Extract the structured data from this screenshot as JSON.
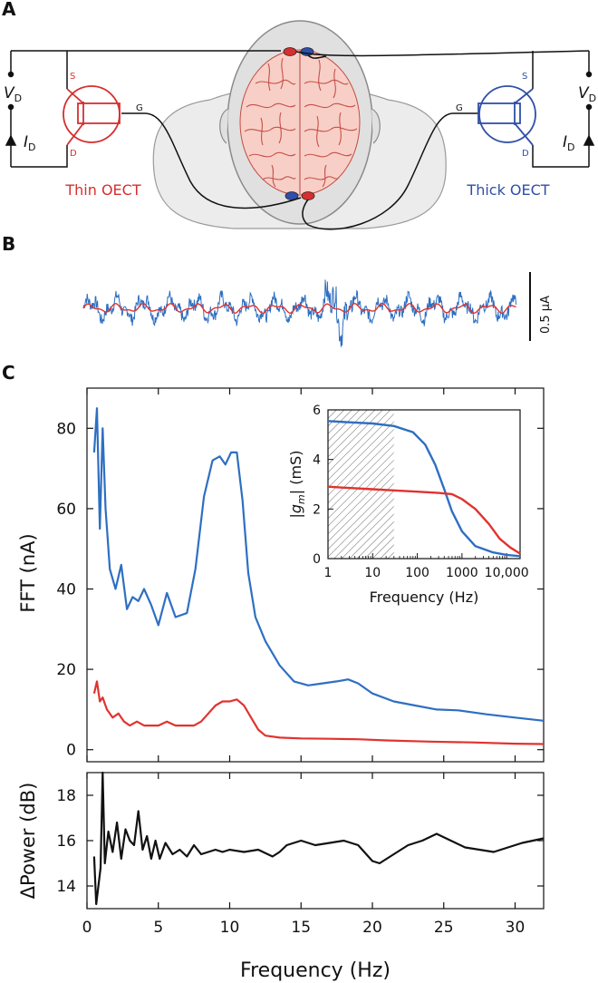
{
  "panels": {
    "a": "A",
    "b": "B",
    "c": "C"
  },
  "circuit": {
    "left": {
      "name": "Thin OECT",
      "color": "#d62f2f",
      "terminals": {
        "s": "S",
        "d": "D",
        "g": "G"
      }
    },
    "right": {
      "name": "Thick OECT",
      "color": "#2f4fa8",
      "terminals": {
        "s": "S",
        "d": "D",
        "g": "G"
      }
    },
    "vd": {
      "main": "V",
      "sub": "D"
    },
    "id": {
      "main": "I",
      "sub": "D"
    }
  },
  "trace": {
    "scale_label": "0.5 μA",
    "colors": {
      "thick": "#2e6fc2",
      "thin": "#e0332f"
    }
  },
  "chart_data": [
    {
      "type": "line",
      "name": "FFT",
      "ylabel": "FFT (nA)",
      "xlim": [
        0,
        32
      ],
      "ylim": [
        -3,
        90
      ],
      "yticks": [
        0,
        20,
        40,
        60,
        80
      ],
      "series": [
        {
          "name": "Thick OECT",
          "color": "#2e6fc2",
          "x": [
            0.5,
            0.7,
            0.9,
            1.1,
            1.3,
            1.6,
            2.0,
            2.4,
            2.8,
            3.2,
            3.6,
            4.0,
            4.5,
            5.0,
            5.6,
            6.2,
            7.0,
            7.6,
            8.2,
            8.8,
            9.3,
            9.7,
            10.1,
            10.5,
            10.9,
            11.3,
            11.8,
            12.5,
            13.5,
            14.5,
            15.5,
            16.5,
            17.5,
            18.3,
            19.0,
            20.0,
            21.5,
            23.0,
            24.5,
            26.0,
            28.0,
            30.0,
            32.0
          ],
          "y": [
            74,
            85,
            55,
            80,
            60,
            45,
            40,
            46,
            35,
            38,
            37,
            40,
            36,
            31,
            39,
            33,
            34,
            45,
            63,
            72,
            73,
            71,
            74,
            74,
            62,
            44,
            33,
            27,
            21,
            17,
            16,
            16.5,
            17,
            17.5,
            16.5,
            14,
            12,
            11,
            10,
            9.8,
            8.8,
            8,
            7.2
          ]
        },
        {
          "name": "Thin OECT",
          "color": "#e0332f",
          "x": [
            0.5,
            0.7,
            0.9,
            1.1,
            1.4,
            1.8,
            2.2,
            2.6,
            3.0,
            3.5,
            4.0,
            4.5,
            5.0,
            5.6,
            6.2,
            7.0,
            7.5,
            8.0,
            8.5,
            9.0,
            9.5,
            10.0,
            10.5,
            11.0,
            11.5,
            12.0,
            12.5,
            13.5,
            15,
            17,
            19,
            21,
            24,
            27,
            30,
            32
          ],
          "y": [
            14,
            17,
            12,
            13,
            10,
            8,
            9,
            7,
            6,
            7,
            6,
            6,
            6,
            7,
            6,
            6,
            6,
            7,
            9,
            11,
            12,
            12,
            12.5,
            11,
            8,
            5,
            3.5,
            3,
            2.8,
            2.7,
            2.6,
            2.3,
            2,
            1.8,
            1.5,
            1.4
          ]
        }
      ]
    },
    {
      "type": "line",
      "name": "inset",
      "xlabel": "Frequency (Hz)",
      "ylabel": "|g_m| (mS)",
      "xscale": "log",
      "xlim": [
        1,
        20000
      ],
      "ylim": [
        0,
        6
      ],
      "xticks": [
        1,
        10,
        100,
        1000,
        10000
      ],
      "xtick_labels": [
        "1",
        "10",
        "100",
        "1000",
        "10,000"
      ],
      "yticks": [
        0,
        2,
        4,
        6
      ],
      "shaded_range": [
        1,
        30
      ],
      "series": [
        {
          "name": "Thick OECT",
          "color": "#2e6fc2",
          "x": [
            1,
            3,
            10,
            30,
            80,
            150,
            250,
            400,
            600,
            1000,
            2000,
            5000,
            10000,
            20000
          ],
          "y": [
            5.55,
            5.5,
            5.45,
            5.35,
            5.1,
            4.6,
            3.8,
            2.8,
            1.9,
            1.1,
            0.5,
            0.25,
            0.15,
            0.1
          ]
        },
        {
          "name": "Thin OECT",
          "color": "#e0332f",
          "x": [
            1,
            3,
            10,
            30,
            100,
            300,
            600,
            1000,
            2000,
            4000,
            7000,
            12000,
            20000
          ],
          "y": [
            2.9,
            2.85,
            2.8,
            2.75,
            2.7,
            2.65,
            2.6,
            2.4,
            2.0,
            1.4,
            0.8,
            0.45,
            0.2
          ]
        }
      ]
    },
    {
      "type": "line",
      "name": "delta-power",
      "xlabel": "Frequency (Hz)",
      "ylabel": "ΔPower (dB)",
      "xlim": [
        0,
        32
      ],
      "ylim": [
        13,
        19
      ],
      "xticks": [
        0,
        5,
        10,
        15,
        20,
        25,
        30
      ],
      "yticks": [
        14,
        16,
        18
      ],
      "series": [
        {
          "name": "ΔPower",
          "color": "#111111",
          "x": [
            0.5,
            0.65,
            0.8,
            0.95,
            1.1,
            1.25,
            1.5,
            1.8,
            2.1,
            2.4,
            2.7,
            3.0,
            3.3,
            3.6,
            3.9,
            4.2,
            4.5,
            4.8,
            5.1,
            5.5,
            6.0,
            6.5,
            7.0,
            7.5,
            8.0,
            8.5,
            9.0,
            9.5,
            10,
            11,
            12,
            13,
            13.5,
            14,
            15,
            16,
            17,
            18,
            19,
            20,
            20.5,
            21.5,
            22.5,
            23.5,
            24.5,
            25.5,
            26.5,
            27.5,
            28.5,
            29.5,
            30.5,
            32
          ],
          "y": [
            15.3,
            13.2,
            14.0,
            14.8,
            19.0,
            15.0,
            16.4,
            15.5,
            16.8,
            15.2,
            16.5,
            16.0,
            15.8,
            17.3,
            15.6,
            16.2,
            15.2,
            16.0,
            15.2,
            15.9,
            15.4,
            15.6,
            15.3,
            15.8,
            15.4,
            15.5,
            15.6,
            15.5,
            15.6,
            15.5,
            15.6,
            15.3,
            15.5,
            15.8,
            16.0,
            15.8,
            15.9,
            16.0,
            15.8,
            15.1,
            15.0,
            15.4,
            15.8,
            16.0,
            16.3,
            16.0,
            15.7,
            15.6,
            15.5,
            15.7,
            15.9,
            16.1
          ]
        }
      ]
    }
  ]
}
